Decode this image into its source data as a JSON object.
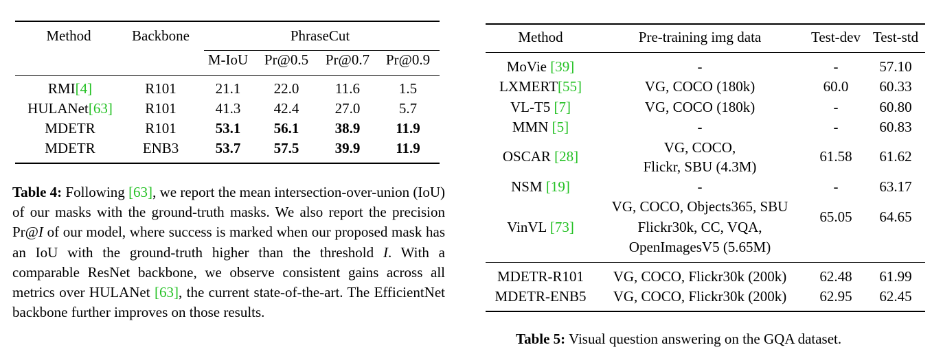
{
  "table4": {
    "headers": {
      "method": "Method",
      "backbone": "Backbone",
      "group": "PhraseCut",
      "metrics": [
        "M-IoU",
        "Pr@0.5",
        "Pr@0.7",
        "Pr@0.9"
      ]
    },
    "rows": [
      {
        "method": "RMI",
        "cite": "[4]",
        "backbone": "R101",
        "values": [
          "21.1",
          "22.0",
          "11.6",
          "1.5"
        ],
        "bold": false
      },
      {
        "method": "HULANet",
        "cite": "[63]",
        "backbone": "R101",
        "values": [
          "41.3",
          "42.4",
          "27.0",
          "5.7"
        ],
        "bold": false
      },
      {
        "method": "MDETR",
        "cite": "",
        "backbone": "R101",
        "values": [
          "53.1",
          "56.1",
          "38.9",
          "11.9"
        ],
        "bold": true
      },
      {
        "method": "MDETR",
        "cite": "",
        "backbone": "ENB3",
        "values": [
          "53.7",
          "57.5",
          "39.9",
          "11.9"
        ],
        "bold": true
      }
    ],
    "caption_label": "Table 4:",
    "caption_parts": [
      " Following ",
      "[63]",
      ", we report the mean intersection-over-union (IoU) of our masks with the ground-truth masks. We also report the precision Pr@",
      "I",
      " of our model, where success is marked when our proposed mask has an IoU with the ground-truth higher than the threshold ",
      "I",
      ". With a comparable ResNet backbone, we observe consistent gains across all metrics over HULANet ",
      "[63]",
      ", the current state-of-the-art. The EfficientNet backbone further improves on those results."
    ]
  },
  "table5": {
    "headers": [
      "Method",
      "Pre-training img data",
      "Test-dev",
      "Test-std"
    ],
    "rows": [
      {
        "method": "MoVie ",
        "cite": "[39]",
        "data": [
          "-"
        ],
        "dev": "-",
        "std": "57.10"
      },
      {
        "method": "LXMERT",
        "cite": "[55]",
        "data": [
          "VG, COCO (180k)"
        ],
        "dev": "60.0",
        "std": "60.33"
      },
      {
        "method": "VL-T5 ",
        "cite": "[7]",
        "data": [
          "VG, COCO (180k)"
        ],
        "dev": "-",
        "std": "60.80"
      },
      {
        "method": "MMN ",
        "cite": "[5]",
        "data": [
          "-"
        ],
        "dev": "-",
        "std": "60.83"
      },
      {
        "method": "OSCAR ",
        "cite": "[28]",
        "data": [
          "VG, COCO,",
          "Flickr, SBU (4.3M)"
        ],
        "dev": "61.58",
        "std": "61.62"
      },
      {
        "method": "NSM ",
        "cite": "[19]",
        "data": [
          "-"
        ],
        "dev": "-",
        "std": "63.17"
      },
      {
        "method": "VinVL ",
        "cite": "[73]",
        "data": [
          "VG, COCO, Objects365, SBU",
          "Flickr30k, CC, VQA,",
          "OpenImagesV5 (5.65M)"
        ],
        "dev": "65.05",
        "std": "64.65"
      },
      {
        "method": "MDETR-R101",
        "cite": "",
        "data": [
          "VG, COCO, Flickr30k (200k)"
        ],
        "dev": "62.48",
        "std": "61.99"
      },
      {
        "method": "MDETR-ENB5",
        "cite": "",
        "data": [
          "VG, COCO, Flickr30k (200k)"
        ],
        "dev": "62.95",
        "std": "62.45"
      }
    ],
    "caption_label": "Table 5:",
    "caption_text": " Visual question answering on the GQA dataset."
  }
}
